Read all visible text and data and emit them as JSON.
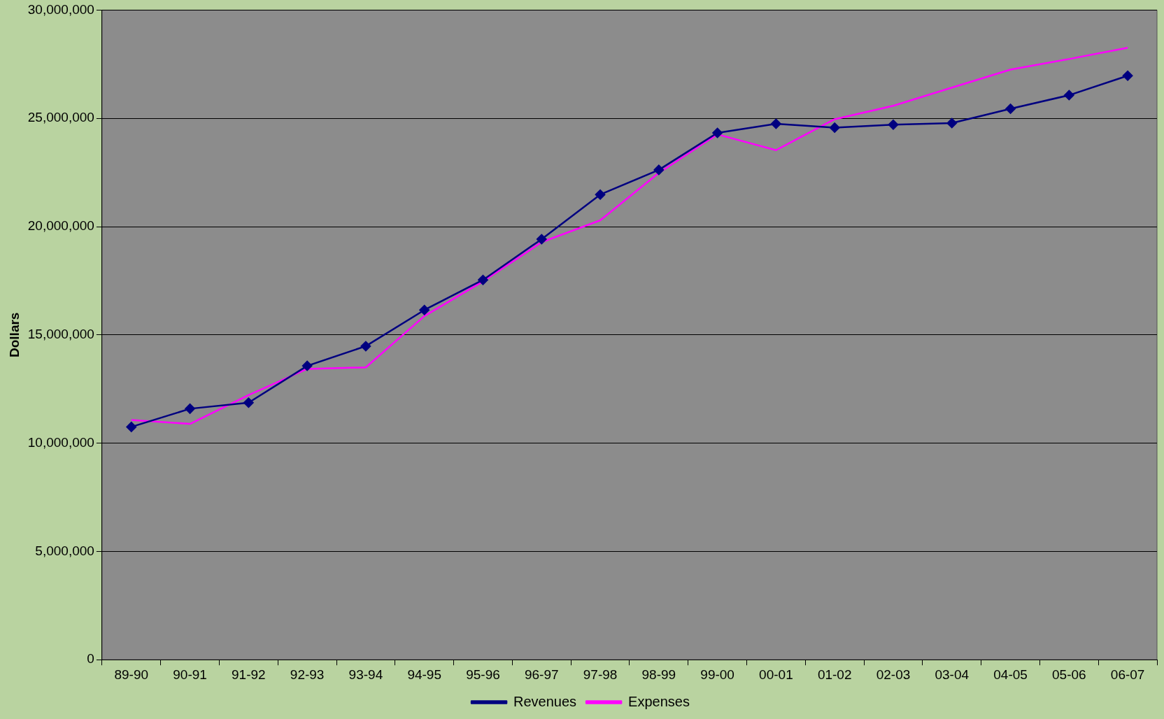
{
  "chart_data": {
    "type": "line",
    "ylabel": "Dollars",
    "categories": [
      "89-90",
      "90-91",
      "91-92",
      "92-93",
      "93-94",
      "94-95",
      "95-96",
      "96-97",
      "97-98",
      "98-99",
      "99-00",
      "00-01",
      "01-02",
      "02-03",
      "03-04",
      "04-05",
      "05-06",
      "06-07"
    ],
    "series": [
      {
        "name": "Revenues",
        "color": "#000080",
        "marker": "diamond",
        "values": [
          10750000,
          11590000,
          11870000,
          13570000,
          14480000,
          16150000,
          17540000,
          19420000,
          21480000,
          22620000,
          24330000,
          24750000,
          24570000,
          24710000,
          24780000,
          25440000,
          26070000,
          26970000
        ]
      },
      {
        "name": "Expenses",
        "color": "#ff00ff",
        "marker": "none",
        "values": [
          11070000,
          10890000,
          12220000,
          13430000,
          13500000,
          15870000,
          17470000,
          19280000,
          20290000,
          22480000,
          24260000,
          23530000,
          24960000,
          25580000,
          26420000,
          27250000,
          27740000,
          28260000
        ]
      }
    ],
    "ylim": [
      0,
      30000000
    ],
    "yticks": [
      {
        "value": 0,
        "label": "0"
      },
      {
        "value": 5000000,
        "label": "5,000,000"
      },
      {
        "value": 10000000,
        "label": "10,000,000"
      },
      {
        "value": 15000000,
        "label": "15,000,000"
      },
      {
        "value": 20000000,
        "label": "20,000,000"
      },
      {
        "value": 25000000,
        "label": "25,000,000"
      },
      {
        "value": 30000000,
        "label": "30,000,000"
      }
    ],
    "grid": "y",
    "legend": "bottom",
    "line_style": "solid"
  }
}
